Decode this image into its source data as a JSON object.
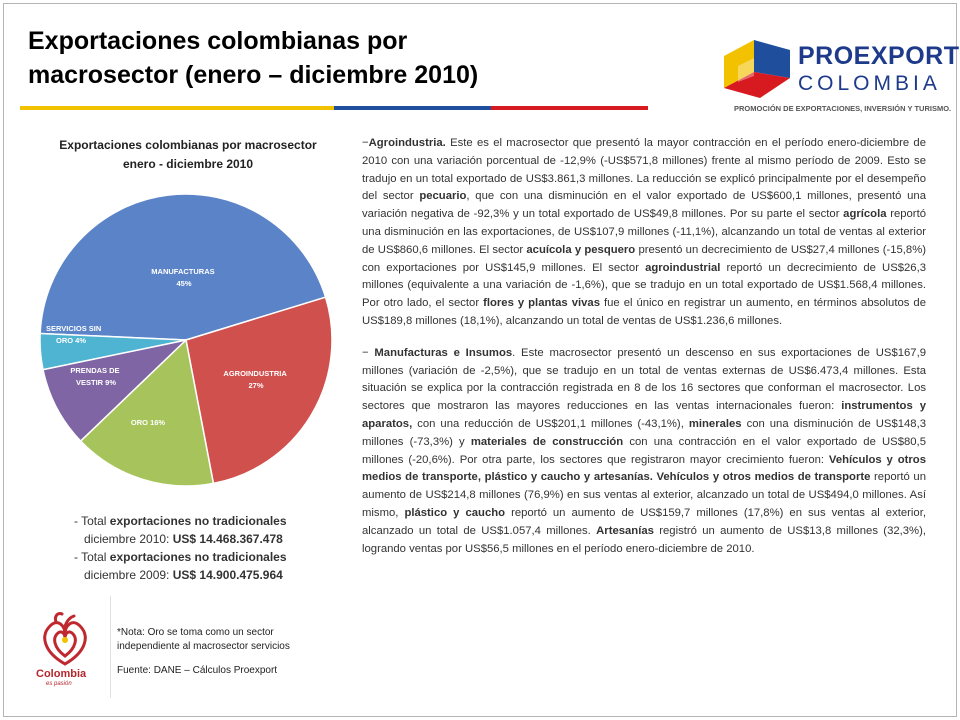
{
  "title": {
    "line1": "Exportaciones colombianas por",
    "line2": "macrosector (enero – diciembre 2010)"
  },
  "logo": {
    "name1": "PROEXPORT",
    "name2": "COLOMBIA",
    "tagline": "PROMOCIÓN DE EXPORTACIONES, INVERSIÓN Y TURISMO."
  },
  "chart_data": {
    "type": "pie",
    "title": "Exportaciones colombianas por macrosector enero - diciembre 2010",
    "title_line1": "Exportaciones colombianas por macrosector",
    "title_line2": "enero - diciembre 2010",
    "slices": [
      {
        "label": "MANUFACTURAS",
        "value": 45,
        "display": "45%",
        "color": "#5b84c8"
      },
      {
        "label": "AGROINDUSTRIA",
        "value": 27,
        "display": "27%",
        "color": "#d0504e"
      },
      {
        "label": "ORO",
        "value": 16,
        "display": "16%",
        "color": "#a7c45c"
      },
      {
        "label": "PRENDAS DE VESTIR",
        "value": 9,
        "display": "9%",
        "color": "#8065a5"
      },
      {
        "label": "SERVICIOS SIN ORO",
        "value": 4,
        "display": "4%",
        "color": "#4fb3d2"
      }
    ],
    "labels": {
      "manufacturas": [
        "MANUFACTURAS",
        "45%"
      ],
      "agroindustria": [
        "AGROINDUSTRIA",
        "27%"
      ],
      "oro": [
        "ORO 16%"
      ],
      "prendas": [
        "PRENDAS DE",
        "VESTIR 9%"
      ],
      "servicios": [
        "SERVICIOS SIN",
        "ORO 4%"
      ]
    }
  },
  "totals": {
    "t2010_a": "- Total ",
    "t2010_b": "exportaciones no tradicionales",
    "t2010_c": "diciembre 2010:",
    "t2010_d": "US$ 14.468.367.478",
    "t2009_a": "- Total ",
    "t2009_b": "exportaciones no tradicionales",
    "t2009_c": "diciembre 2009:",
    "t2009_d": "US$ 14.900.475.964"
  },
  "notes": {
    "nota1": "*Nota: Oro se toma como un sector",
    "nota2": "independiente al macrosector servicios",
    "fuente": "Fuente: DANE – Cálculos Proexport"
  },
  "brand": {
    "name": "Colombia",
    "tagline": "es pasión"
  },
  "body": {
    "p1": [
      {
        "t": "−",
        "b": false
      },
      {
        "t": "Agroindustria.",
        "b": true
      },
      {
        "t": " Este es el macrosector que presentó la mayor contracción en el período enero-diciembre de 2010 con una variación porcentual de -12,9% (-US$571,8 millones) frente al mismo período de 2009. Esto se tradujo en un total exportado de US$3.861,3 millones. La reducción se explicó principalmente por el desempeño del sector ",
        "b": false
      },
      {
        "t": "pecuario",
        "b": true
      },
      {
        "t": ", que con una disminución en el valor exportado de US$600,1 millones, presentó una variación negativa de -92,3% y un total exportado de US$49,8 millones. Por su parte el sector ",
        "b": false
      },
      {
        "t": "agrícola",
        "b": true
      },
      {
        "t": " reportó una disminución en las exportaciones, de US$107,9 millones (-11,1%), alcanzando un total de ventas al exterior de US$860,6 millones. El sector ",
        "b": false
      },
      {
        "t": "acuícola y pesquero",
        "b": true
      },
      {
        "t": " presentó un decrecimiento de US$27,4 millones (-15,8%) con exportaciones por US$145,9 millones. El sector ",
        "b": false
      },
      {
        "t": "agroindustrial",
        "b": true
      },
      {
        "t": " reportó un decrecimiento de US$26,3 millones (equivalente a una variación de -1,6%), que se tradujo en un total exportado de US$1.568,4 millones. Por otro lado, el sector ",
        "b": false
      },
      {
        "t": "flores y plantas vivas",
        "b": true
      },
      {
        "t": " fue el único en registrar un aumento, en términos absolutos de US$189,8 millones (18,1%), alcanzando un total de ventas de US$1.236,6 millones.",
        "b": false
      }
    ],
    "p2": [
      {
        "t": "− ",
        "b": false
      },
      {
        "t": "Manufacturas e Insumos",
        "b": true
      },
      {
        "t": ". Este macrosector presentó un descenso en sus exportaciones de US$167,9 millones (variación de -2,5%), que se tradujo en un total de ventas externas de US$6.473,4 millones. Esta situación se explica por la contracción registrada en 8 de los 16 sectores que conforman el macrosector. Los sectores que mostraron las mayores reducciones en las ventas internacionales fueron: ",
        "b": false
      },
      {
        "t": "instrumentos y aparatos,",
        "b": true
      },
      {
        "t": " con una reducción de US$201,1 millones (-43,1%), ",
        "b": false
      },
      {
        "t": "minerales",
        "b": true
      },
      {
        "t": " con una disminución de US$148,3 millones (-73,3%) y ",
        "b": false
      },
      {
        "t": "materiales de construcción",
        "b": true
      },
      {
        "t": " con una contracción en el valor exportado de US$80,5 millones (-20,6%). Por otra parte, los sectores que registraron mayor crecimiento fueron: ",
        "b": false
      },
      {
        "t": "Vehículos y otros medios de transporte, plástico y caucho y artesanías. Vehículos y otros medios de transporte",
        "b": true
      },
      {
        "t": " reportó un aumento de US$214,8 millones (76,9%) en sus ventas al exterior, alcanzado un total de US$494,0 millones. Así mismo, ",
        "b": false
      },
      {
        "t": "plástico y caucho",
        "b": true
      },
      {
        "t": " reportó un aumento de US$159,7 millones (17,8%) en sus ventas al exterior, alcanzado un total de US$1.057,4 millones. ",
        "b": false
      },
      {
        "t": "Artesanías",
        "b": true
      },
      {
        "t": " registró un aumento de US$13,8 millones (32,3%), logrando ventas por US$56,5 millones en el período enero-diciembre de 2010.",
        "b": false
      }
    ]
  }
}
